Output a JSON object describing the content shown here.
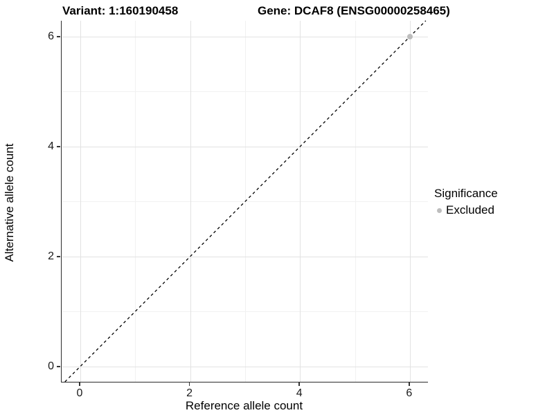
{
  "titles": {
    "variant": "Variant: 1:160190458",
    "gene": "Gene: DCAF8 (ENSG00000258465)"
  },
  "chart_data": {
    "type": "scatter",
    "title_left": "Variant: 1:160190458",
    "title_right": "Gene: DCAF8 (ENSG00000258465)",
    "xlabel": "Reference allele count",
    "ylabel": "Alternative allele count",
    "xlim": [
      -0.34,
      6.33
    ],
    "ylim": [
      -0.28,
      6.29
    ],
    "xticks": [
      0,
      2,
      4,
      6
    ],
    "yticks": [
      0,
      2,
      4,
      6
    ],
    "xticks_minor": [
      1,
      3,
      5
    ],
    "yticks_minor": [
      1,
      3,
      5
    ],
    "grid": true,
    "points": [
      {
        "x": 6,
        "y": 6,
        "series": "Excluded"
      }
    ],
    "reference_line": {
      "type": "abline",
      "slope": 1,
      "intercept": 0,
      "style": "dashed",
      "color": "#000000"
    },
    "legend": {
      "title": "Significance",
      "position": "right",
      "items": [
        {
          "label": "Excluded",
          "color": "#bdbdbd"
        }
      ]
    },
    "colors": {
      "point_excluded": "#bdbdbd",
      "grid_major": "#e2e2e2",
      "grid_minor": "#f1f1f1",
      "axis_line": "#2a2a2a",
      "background": "#ffffff"
    }
  }
}
